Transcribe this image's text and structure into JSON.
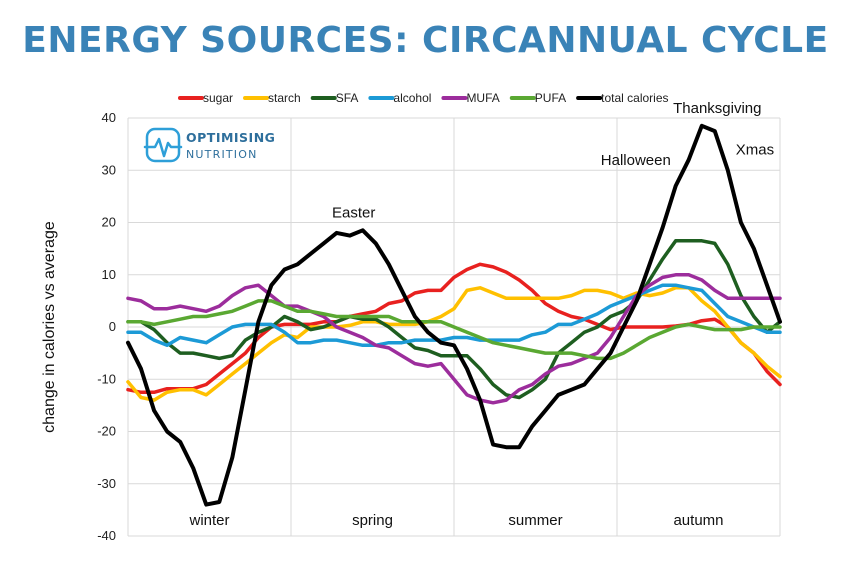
{
  "header": {
    "title": "ENERGY SOURCES: CIRCANNUAL CYCLE"
  },
  "logo": {
    "line1": "OPTIMISING",
    "line2": "NUTRITION",
    "color": "#2e9fd8"
  },
  "chart_data": {
    "type": "line",
    "title": "ENERGY SOURCES: CIRCANNUAL CYCLE",
    "ylabel": "change in calories vs average",
    "xlabel": "",
    "ylim": [
      -40,
      40
    ],
    "yticks": [
      "40",
      "30",
      "20",
      "10",
      "0",
      "-10",
      "-20",
      "-30",
      "-40"
    ],
    "ytick_values": [
      40,
      30,
      20,
      10,
      0,
      -10,
      -20,
      -30,
      -40
    ],
    "xlim": [
      0,
      52
    ],
    "grid": true,
    "legend_position": "top",
    "season_labels": [
      {
        "label": "winter",
        "x": 6.5
      },
      {
        "label": "spring",
        "x": 19.5
      },
      {
        "label": "summer",
        "x": 32.5
      },
      {
        "label": "autumn",
        "x": 45.5
      }
    ],
    "annotations": [
      {
        "text": "Easter",
        "x": 18,
        "y": 21
      },
      {
        "text": "Halloween",
        "x": 40.5,
        "y": 31
      },
      {
        "text": "Thanksgiving",
        "x": 47,
        "y": 41
      },
      {
        "text": "Xmas",
        "x": 50,
        "y": 33
      }
    ],
    "series": [
      {
        "name": "sugar",
        "color": "#e8211f",
        "values": [
          -12,
          -12.5,
          -12.5,
          -11.8,
          -11.8,
          -11.8,
          -11,
          -9,
          -7,
          -5,
          -2,
          0,
          0.5,
          0.5,
          0.5,
          1,
          1,
          2,
          2.5,
          3,
          4.5,
          5,
          6.5,
          7,
          7,
          9.5,
          11,
          12,
          11.5,
          10.5,
          9,
          7,
          4.5,
          3,
          2,
          1.5,
          0.5,
          -0.5,
          0,
          0,
          0,
          0,
          0.2,
          0.5,
          1.2,
          1.5,
          0,
          -3,
          -5,
          -8.5,
          -11
        ]
      },
      {
        "name": "starch",
        "color": "#ffc000",
        "values": [
          -10.5,
          -13.5,
          -14,
          -12.5,
          -12,
          -12,
          -13,
          -11,
          -9,
          -7,
          -5,
          -3,
          -1.5,
          -2,
          0,
          0,
          0,
          0.3,
          1,
          1,
          0.5,
          0.5,
          0.5,
          1,
          2,
          3.5,
          7,
          7.5,
          6.5,
          5.5,
          5.5,
          5.5,
          5.5,
          5.5,
          6,
          7,
          7,
          6.5,
          5.5,
          6.5,
          6,
          6.5,
          7.5,
          7.5,
          5,
          3,
          0,
          -3,
          -5,
          -7.5,
          -9.5
        ]
      },
      {
        "name": "SFA",
        "color": "#1e5e20",
        "values": [
          1,
          1,
          -0.5,
          -3,
          -5,
          -5,
          -5.5,
          -6,
          -5.5,
          -2.5,
          -1,
          0,
          2,
          1,
          -0.5,
          0,
          1,
          2,
          1.5,
          1.5,
          0,
          -2,
          -4,
          -4.5,
          -5.5,
          -5.5,
          -5.5,
          -8,
          -11,
          -13,
          -13.5,
          -12,
          -10,
          -5,
          -3,
          -1,
          0,
          2,
          3,
          5,
          9,
          13,
          16.5,
          16.5,
          16.5,
          16,
          12,
          6,
          2,
          -1,
          1
        ]
      },
      {
        "name": "alcohol",
        "color": "#1c9ad6",
        "values": [
          -1,
          -1,
          -2.5,
          -3.5,
          -2,
          -2.5,
          -3,
          -1.5,
          0,
          0.5,
          0.5,
          0.5,
          -1,
          -3,
          -3,
          -2.5,
          -2.5,
          -3,
          -3.5,
          -3.5,
          -3,
          -3,
          -2.5,
          -2.5,
          -2.5,
          -2,
          -2,
          -2.5,
          -2.5,
          -2.5,
          -2.5,
          -1.5,
          -1,
          0.5,
          0.5,
          1.5,
          2.5,
          4,
          5,
          6,
          7,
          8,
          8,
          7.5,
          7,
          4.5,
          2,
          1,
          0,
          -1,
          -1
        ]
      },
      {
        "name": "MUFA",
        "color": "#9c2d9c",
        "values": [
          5.5,
          5,
          3.5,
          3.5,
          4,
          3.5,
          3,
          4,
          6,
          7.5,
          8,
          6,
          4,
          4,
          3,
          2,
          0,
          -1,
          -2,
          -3.5,
          -4,
          -5.5,
          -7,
          -7.5,
          -7,
          -10,
          -13,
          -14,
          -14.5,
          -14,
          -12,
          -11,
          -9,
          -7.5,
          -7,
          -6,
          -5,
          -2,
          2,
          6,
          8,
          9.5,
          10,
          10,
          9,
          7,
          5.5,
          5.5,
          5.5,
          5.5,
          5.5
        ]
      },
      {
        "name": "PUFA",
        "color": "#5aa832",
        "values": [
          1,
          1,
          0.5,
          1,
          1.5,
          2,
          2,
          2.5,
          3,
          4,
          5,
          5,
          4,
          3,
          3,
          2.5,
          2,
          2,
          2,
          2,
          2,
          1,
          1,
          1,
          1,
          0,
          -1,
          -2,
          -3,
          -3.5,
          -4,
          -4.5,
          -5,
          -5,
          -5,
          -5.5,
          -6,
          -6,
          -5,
          -3.5,
          -2,
          -1,
          0,
          0.5,
          0,
          -0.5,
          -0.5,
          -0.5,
          0,
          0,
          0
        ]
      },
      {
        "name": "total calories",
        "color": "#000000",
        "values": [
          -3,
          -8,
          -16,
          -20,
          -22,
          -27,
          -34,
          -33.5,
          -25,
          -12,
          1,
          8,
          11,
          12,
          14,
          16,
          18,
          17.5,
          18.5,
          16,
          12,
          7,
          2,
          -1,
          -3,
          -3.5,
          -8,
          -14,
          -22.5,
          -23,
          -23,
          -19,
          -16,
          -13,
          -12,
          -11,
          -8,
          -5,
          0,
          5,
          12,
          19,
          27,
          32,
          38.5,
          37.5,
          30,
          20,
          15,
          8,
          1
        ]
      }
    ]
  }
}
